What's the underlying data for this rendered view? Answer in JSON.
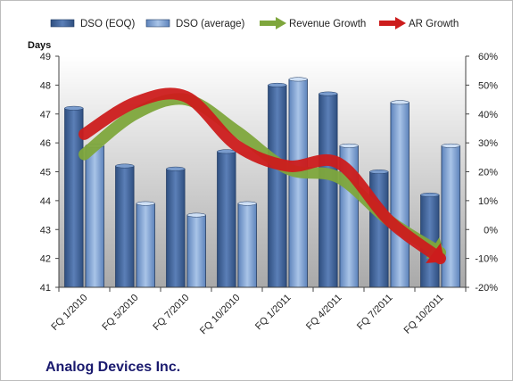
{
  "chart_data": {
    "type": "bar",
    "title": "Analog Devices Inc.",
    "ylabel": "Days",
    "ylim": [
      41,
      49
    ],
    "y2lim": [
      -20,
      60
    ],
    "y2_unit": "%",
    "yticks": [
      41,
      42,
      43,
      44,
      45,
      46,
      47,
      48,
      49
    ],
    "y2ticks": [
      -20,
      -10,
      0,
      10,
      20,
      30,
      40,
      50,
      60
    ],
    "categories": [
      "FQ 1/2010",
      "FQ 5/2010",
      "FQ 7/2010",
      "FQ 10/2010",
      "FQ 1/2011",
      "FQ 4/2011",
      "FQ 7/2011",
      "FQ 10/2011"
    ],
    "series": [
      {
        "name": "DSO (EOQ)",
        "kind": "bar",
        "axis": "left",
        "color": "#4a6fa8",
        "values": [
          47.2,
          45.2,
          45.1,
          45.7,
          48.0,
          47.7,
          45.0,
          44.2
        ]
      },
      {
        "name": "DSO (average)",
        "kind": "bar",
        "axis": "left",
        "color": "#8fb0dc",
        "values": [
          45.9,
          43.9,
          43.5,
          43.9,
          48.2,
          45.9,
          47.4,
          45.9
        ]
      },
      {
        "name": "Revenue Growth",
        "kind": "line",
        "axis": "right",
        "color": "#7ea63c",
        "values": [
          26,
          40,
          45,
          34,
          21,
          18,
          3,
          -8
        ]
      },
      {
        "name": "AR Growth",
        "kind": "line",
        "axis": "right",
        "color": "#cc1c1c",
        "values": [
          33,
          44,
          46,
          29,
          22,
          23,
          3,
          -10
        ]
      }
    ],
    "legend_position": "top",
    "grid": false,
    "plot_background": "gray gradient"
  }
}
